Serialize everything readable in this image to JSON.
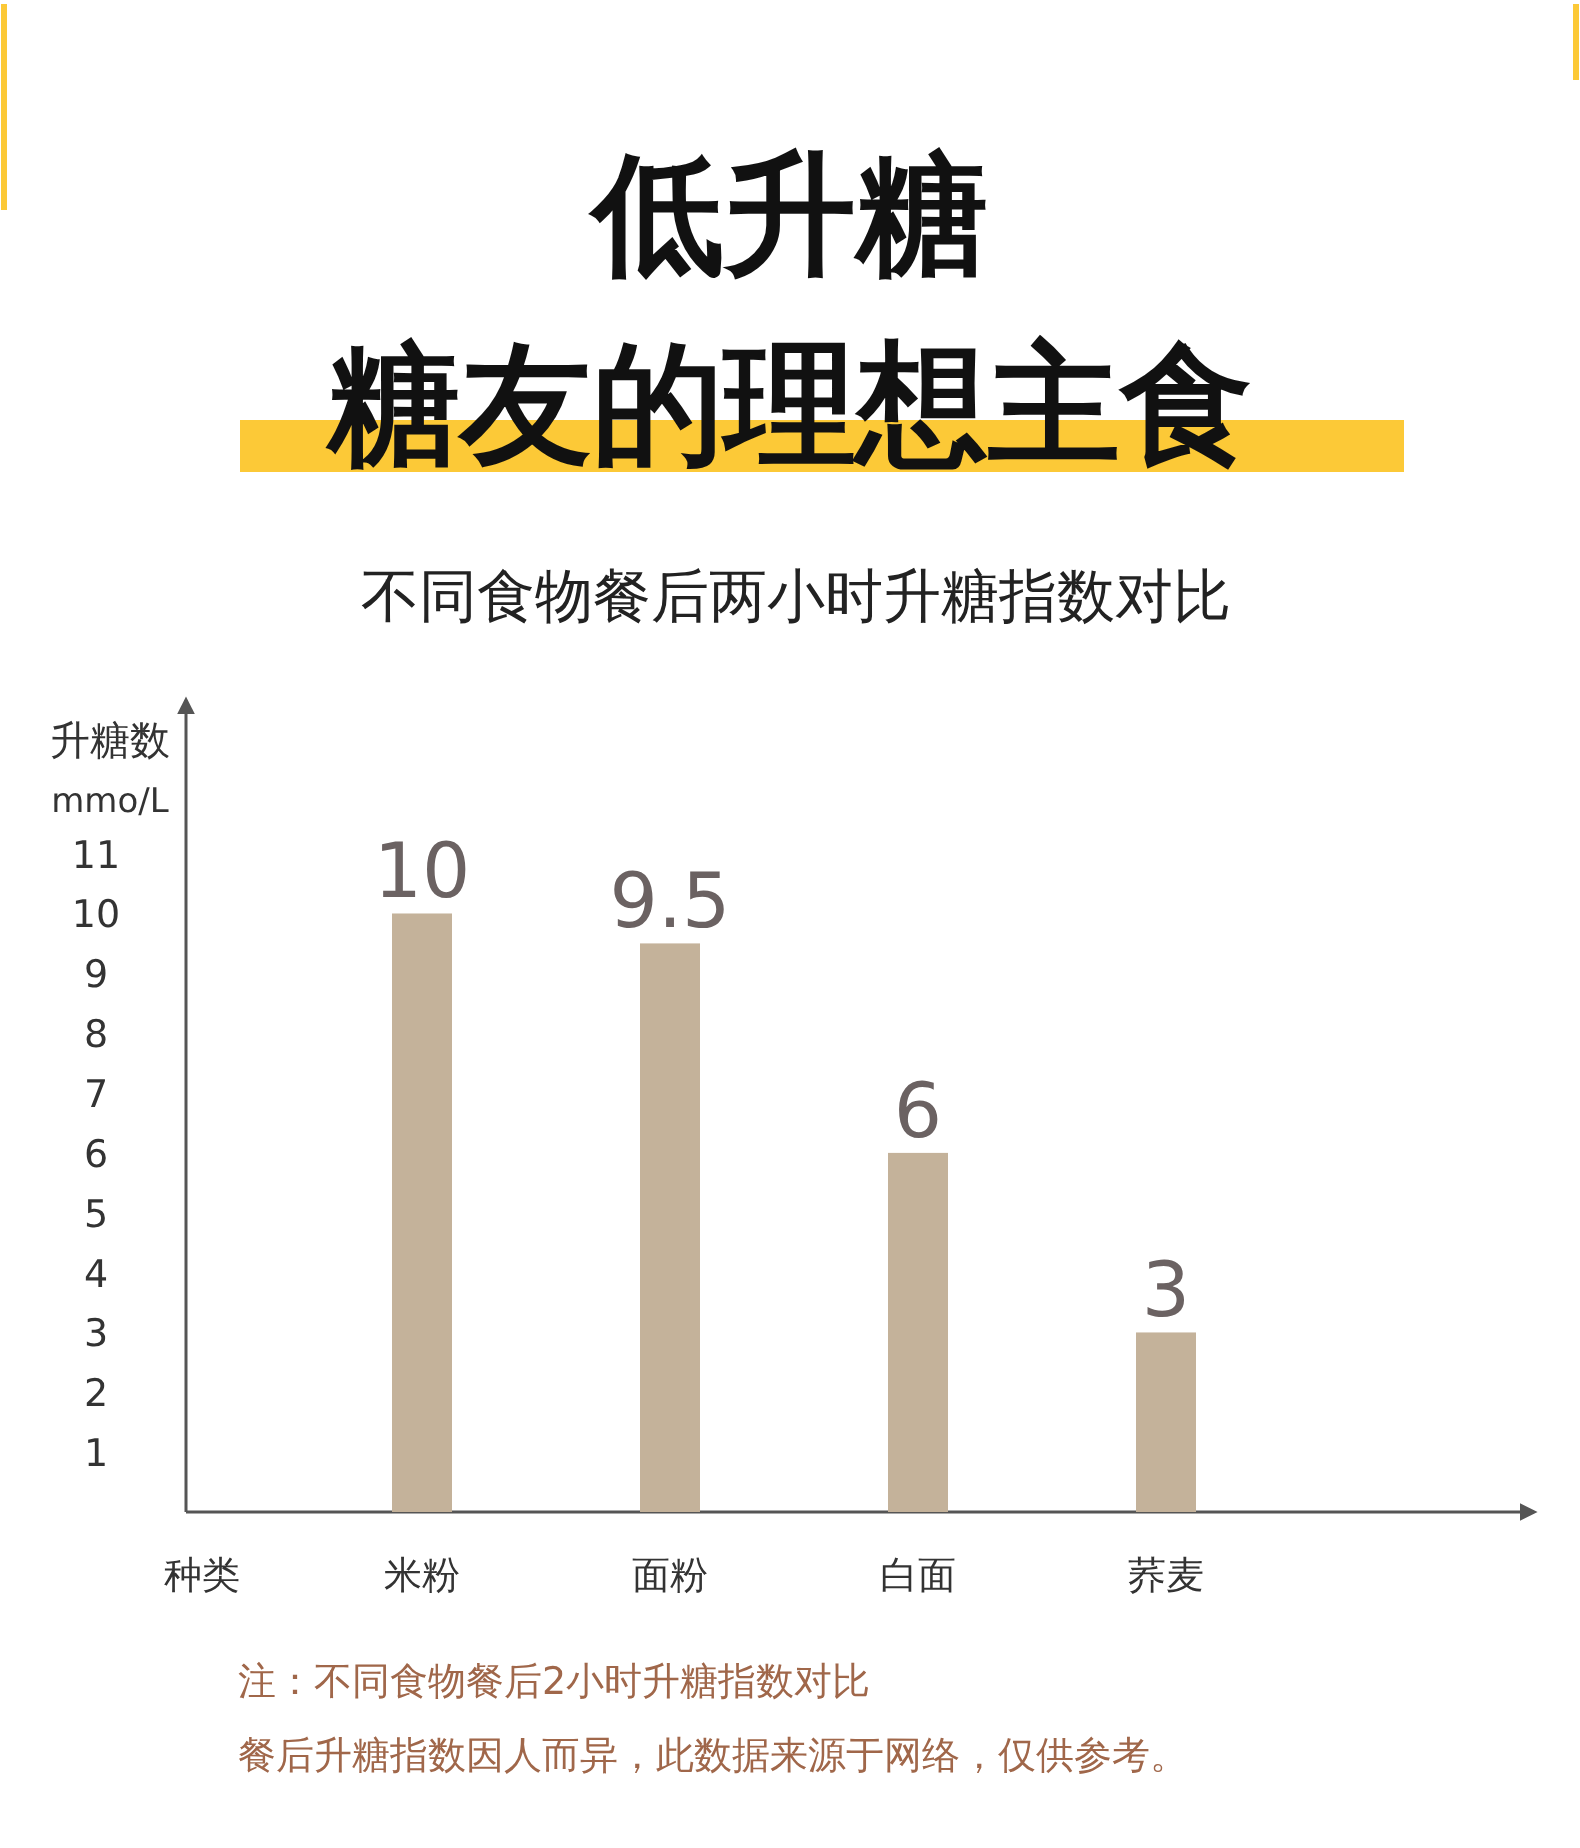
{
  "chart_data": {
    "type": "bar",
    "title": "低升糖",
    "subtitle": "糖友的理想主食",
    "ylabel": "升糖数\nmmo/L",
    "xlabel": "种类",
    "categories": [
      "米粉",
      "面粉",
      "白面",
      "荞麦"
    ],
    "values": [
      10,
      9.5,
      6,
      3
    ],
    "color": "#c4b29a",
    "ylim": [
      0,
      13.5
    ],
    "yticks": [
      1,
      2,
      3,
      4,
      5,
      6,
      7,
      8,
      9,
      10,
      11
    ],
    "grid": false,
    "data_labels": true,
    "annotations": [
      "不同食物餐后两小时升糖指数对比",
      "注：不同食物餐后2小时升糖指数对比",
      "餐后升糖指数因人而异，此数据来源于网络，仅供参考。"
    ]
  }
}
